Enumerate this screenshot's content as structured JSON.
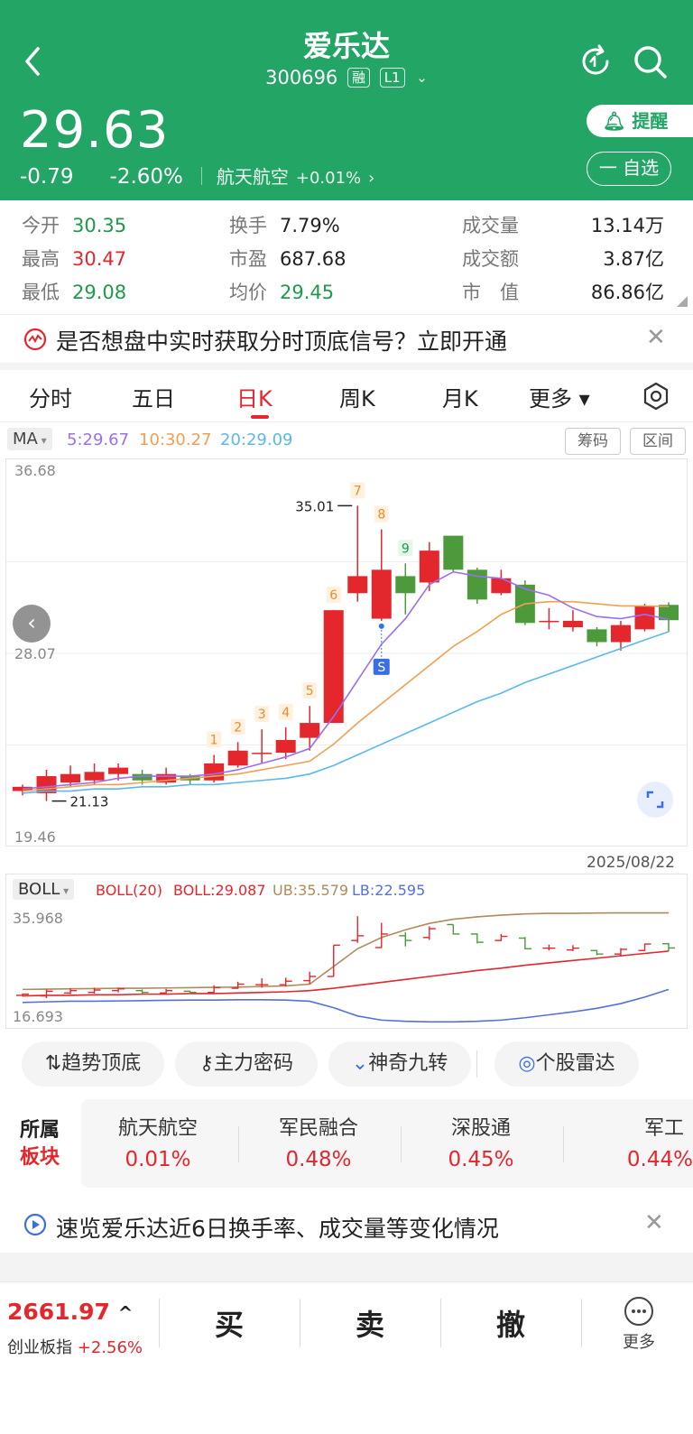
{
  "header": {
    "title": "爱乐达",
    "code": "300696",
    "tag_margin": "融",
    "tag_level": "L1",
    "price": "29.63",
    "change": "-0.79",
    "change_pct": "-2.60%",
    "sector_name": "航天航空",
    "sector_change": "+0.01%",
    "remind_label": "提醒",
    "watch_label": "一 自选",
    "bg_color": "#23a566"
  },
  "stats": {
    "open_label": "今开",
    "open": "30.35",
    "high_label": "最高",
    "high": "30.47",
    "low_label": "最低",
    "low": "29.08",
    "turnover_label": "换手",
    "turnover": "7.79%",
    "pe_label": "市盈",
    "pe": "687.68",
    "avg_label": "均价",
    "avg": "29.45",
    "volume_label": "成交量",
    "volume": "13.14万",
    "amount_label": "成交额",
    "amount": "3.87亿",
    "mcap_label": "市　值",
    "mcap": "86.86亿"
  },
  "banner_top": {
    "text": "是否想盘中实时获取分时顶底信号？立即开通"
  },
  "tabs": [
    {
      "label": "分时"
    },
    {
      "label": "五日"
    },
    {
      "label": "日K"
    },
    {
      "label": "周K"
    },
    {
      "label": "月K"
    },
    {
      "label": "更多 ▾"
    }
  ],
  "ma": {
    "selector": "MA",
    "ma5": "5:29.67",
    "ma10": "10:30.27",
    "ma20": "20:29.09",
    "chip_btn": "筹码",
    "range_btn": "区间"
  },
  "kline_labels": {
    "top": "36.68",
    "mid": "28.07",
    "bottom": "19.46",
    "high_mark": "35.01",
    "low_mark": "21.13",
    "date": "2025/08/22",
    "nine_turn": [
      "1",
      "2",
      "3",
      "4",
      "5",
      "6",
      "7",
      "8",
      "9"
    ],
    "signal": "S"
  },
  "chart_data": {
    "type": "candlestick",
    "ylim": [
      19.46,
      36.68
    ],
    "candles": [
      {
        "o": 21.6,
        "c": 21.8,
        "h": 21.9,
        "l": 21.4
      },
      {
        "o": 21.5,
        "c": 22.3,
        "h": 22.6,
        "l": 21.13
      },
      {
        "o": 22.0,
        "c": 22.4,
        "h": 22.8,
        "l": 21.8
      },
      {
        "o": 22.1,
        "c": 22.5,
        "h": 22.9,
        "l": 21.9
      },
      {
        "o": 22.4,
        "c": 22.7,
        "h": 22.9,
        "l": 22.1
      },
      {
        "o": 22.4,
        "c": 22.1,
        "h": 22.6,
        "l": 21.9
      },
      {
        "o": 22.0,
        "c": 22.4,
        "h": 22.7,
        "l": 21.9
      },
      {
        "o": 22.3,
        "c": 22.1,
        "h": 22.4,
        "l": 21.9
      },
      {
        "o": 22.1,
        "c": 22.9,
        "h": 23.3,
        "l": 22.0
      },
      {
        "o": 22.8,
        "c": 23.5,
        "h": 23.9,
        "l": 22.7
      },
      {
        "o": 23.4,
        "c": 23.4,
        "h": 24.5,
        "l": 22.9
      },
      {
        "o": 23.4,
        "c": 24.0,
        "h": 24.6,
        "l": 23.1
      },
      {
        "o": 24.1,
        "c": 24.8,
        "h": 25.6,
        "l": 23.5
      },
      {
        "o": 24.8,
        "c": 30.1,
        "h": 30.1,
        "l": 24.8
      },
      {
        "o": 30.9,
        "c": 31.7,
        "h": 35.01,
        "l": 30.5
      },
      {
        "o": 29.7,
        "c": 32.0,
        "h": 33.9,
        "l": 29.6
      },
      {
        "o": 31.7,
        "c": 30.9,
        "h": 32.3,
        "l": 29.9
      },
      {
        "o": 31.4,
        "c": 32.9,
        "h": 33.3,
        "l": 31.0
      },
      {
        "o": 33.6,
        "c": 32.0,
        "h": 33.6,
        "l": 31.9
      },
      {
        "o": 32.0,
        "c": 30.6,
        "h": 32.1,
        "l": 30.4
      },
      {
        "o": 30.9,
        "c": 31.6,
        "h": 32.0,
        "l": 30.8
      },
      {
        "o": 31.3,
        "c": 29.5,
        "h": 31.5,
        "l": 29.4
      },
      {
        "o": 29.6,
        "c": 29.6,
        "h": 30.2,
        "l": 29.2
      },
      {
        "o": 29.3,
        "c": 29.6,
        "h": 30.1,
        "l": 29.1
      },
      {
        "o": 29.2,
        "c": 28.6,
        "h": 29.3,
        "l": 28.4
      },
      {
        "o": 28.6,
        "c": 29.4,
        "h": 29.6,
        "l": 28.2
      },
      {
        "o": 29.2,
        "c": 30.3,
        "h": 30.4,
        "l": 29.1
      },
      {
        "o": 30.35,
        "c": 29.63,
        "h": 30.47,
        "l": 29.08
      }
    ],
    "ma5": [
      21.7,
      21.8,
      21.9,
      22.0,
      22.2,
      22.3,
      22.3,
      22.3,
      22.4,
      22.6,
      22.9,
      23.2,
      23.6,
      25.1,
      26.8,
      28.5,
      29.7,
      31.3,
      31.9,
      31.7,
      31.6,
      31.1,
      30.8,
      30.2,
      29.8,
      29.7,
      29.9,
      29.67
    ],
    "ma10": [
      21.6,
      21.7,
      21.8,
      21.9,
      21.9,
      22.0,
      22.1,
      22.2,
      22.3,
      22.4,
      22.6,
      22.8,
      23.0,
      23.8,
      24.8,
      25.7,
      26.6,
      27.5,
      28.4,
      29.1,
      29.9,
      30.4,
      30.5,
      30.5,
      30.4,
      30.3,
      30.3,
      30.27
    ],
    "ma20": [
      21.5,
      21.6,
      21.6,
      21.7,
      21.7,
      21.8,
      21.8,
      21.9,
      21.9,
      22.0,
      22.1,
      22.2,
      22.4,
      22.8,
      23.3,
      23.8,
      24.3,
      24.8,
      25.3,
      25.8,
      26.2,
      26.7,
      27.1,
      27.5,
      27.9,
      28.3,
      28.7,
      29.09
    ],
    "colors": {
      "up": "#e4262d",
      "down": "#4c9a3c",
      "ma5": "#9b6ff0",
      "ma10": "#f0a050",
      "ma20": "#5ab8ec"
    }
  },
  "boll": {
    "selector": "BOLL",
    "name": "BOLL(20)",
    "mid": "BOLL:29.087",
    "ub": "UB:35.579",
    "lb": "LB:22.595",
    "top_label": "35.968",
    "bottom_label": "16.693",
    "ylim": [
      16.693,
      35.968
    ],
    "ub_series": [
      22.6,
      22.65,
      22.7,
      22.75,
      22.8,
      22.8,
      22.85,
      22.9,
      22.95,
      23.0,
      23.1,
      23.2,
      23.5,
      26.5,
      29.5,
      31.4,
      32.7,
      33.8,
      34.5,
      34.9,
      35.2,
      35.4,
      35.5,
      35.5,
      35.55,
      35.58,
      35.58,
      35.579
    ],
    "mid_series": [
      21.5,
      21.6,
      21.6,
      21.7,
      21.7,
      21.8,
      21.8,
      21.9,
      21.9,
      22.0,
      22.1,
      22.2,
      22.4,
      22.8,
      23.3,
      23.8,
      24.3,
      24.8,
      25.3,
      25.8,
      26.2,
      26.7,
      27.1,
      27.5,
      27.9,
      28.3,
      28.7,
      29.087
    ],
    "lb_series": [
      20.4,
      20.5,
      20.6,
      20.6,
      20.65,
      20.7,
      20.75,
      20.8,
      20.8,
      20.85,
      20.85,
      20.8,
      20.6,
      19.5,
      18.1,
      17.4,
      17.2,
      17.1,
      17.1,
      17.2,
      17.4,
      17.8,
      18.3,
      18.8,
      19.4,
      20.2,
      21.3,
      22.595
    ]
  },
  "tools": [
    {
      "label": "趋势顶底",
      "icon": "⇅"
    },
    {
      "label": "主力密码",
      "icon": "⚷"
    },
    {
      "label": "神奇九转",
      "icon": "⌄"
    },
    {
      "label": "个股雷达",
      "icon": "◎"
    }
  ],
  "sectors": {
    "title_line1": "所属",
    "title_line2": "板块",
    "items": [
      {
        "name": "航天航空",
        "pct": "0.01%"
      },
      {
        "name": "军民融合",
        "pct": "0.48%"
      },
      {
        "name": "深股通",
        "pct": "0.45%"
      },
      {
        "name": "军工",
        "pct": "0.44%"
      }
    ]
  },
  "banner_bottom": {
    "text": "速览爱乐达近6日换手率、成交量等变化情况"
  },
  "bottom_bar": {
    "index_value": "2661.97",
    "index_arrow": "^",
    "index_name": "创业板指",
    "index_change": "+2.56%",
    "buy": "买",
    "sell": "卖",
    "cancel": "撤",
    "more": "更多"
  }
}
